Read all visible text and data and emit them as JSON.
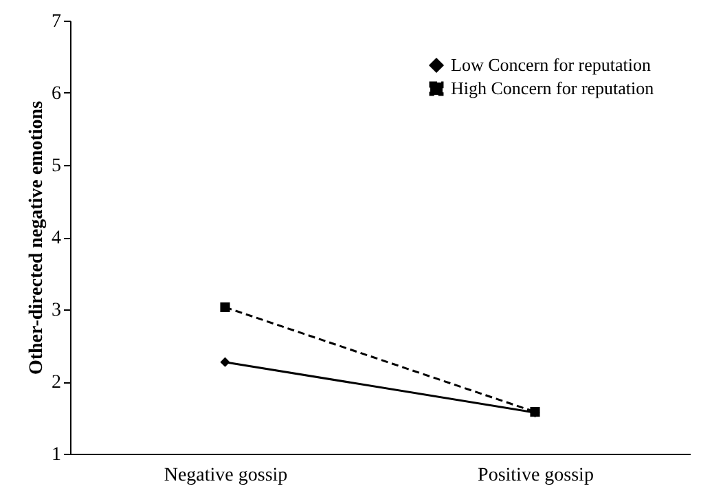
{
  "chart_data": {
    "type": "line",
    "ylabel": "Other-directed negative emotions",
    "categories": [
      "Negative gossip",
      "Positive gossip"
    ],
    "series": [
      {
        "name": "Low Concern for reputation",
        "color": "#000000",
        "values": [
          2.27,
          1.57
        ],
        "marker": "diamond",
        "line_style": "solid"
      },
      {
        "name": "High Concern for reputation",
        "color": "#000000",
        "values": [
          3.03,
          1.58
        ],
        "marker": "square",
        "line_style": "dashed"
      }
    ],
    "ylim": [
      1,
      7
    ],
    "yticks": [
      1,
      2,
      3,
      4,
      5,
      6,
      7
    ],
    "grid": false,
    "legend": "top right"
  }
}
